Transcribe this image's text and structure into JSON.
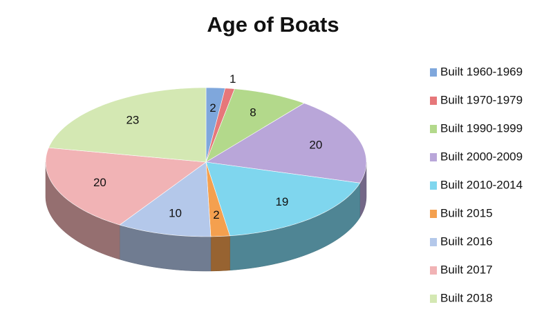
{
  "chart_data": {
    "type": "pie3d",
    "title": "Age of Boats",
    "categories": [
      "Built 1960-1969",
      "Built 1970-1979",
      "Built 1990-1999",
      "Built 2000-2009",
      "Built 2010-2014",
      "Built 2015",
      "Built 2016",
      "Built 2017",
      "Built 2018"
    ],
    "values": [
      2,
      1,
      8,
      20,
      19,
      2,
      10,
      20,
      23
    ],
    "colors": [
      "#7fa7dc",
      "#e6777a",
      "#b3d98b",
      "#b9a6d9",
      "#7fd6ee",
      "#f4a04f",
      "#b4c8ea",
      "#f1b3b5",
      "#d4e8b3"
    ],
    "legend": "right"
  }
}
